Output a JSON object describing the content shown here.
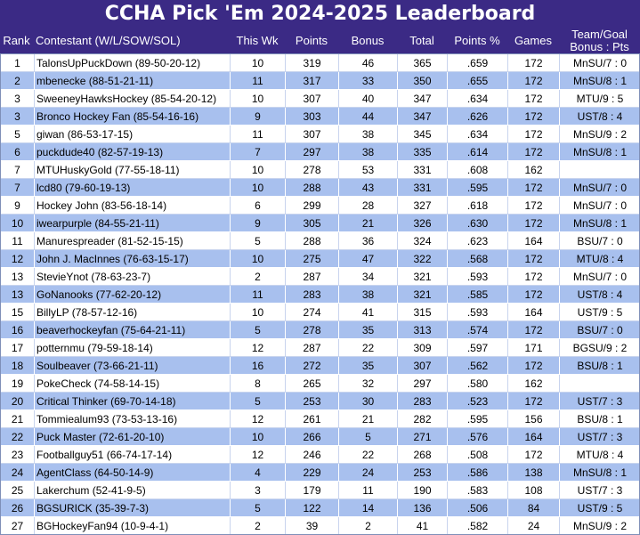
{
  "title": "CCHA Pick 'Em 2024-2025 Leaderboard",
  "columns": {
    "rank": "Rank",
    "contestant": "Contestant (W/L/SOW/SOL)",
    "this_wk": "This Wk",
    "points": "Points",
    "bonus": "Bonus",
    "total": "Total",
    "points_pct": "Points %",
    "games": "Games",
    "team_goal_line1": "Team/Goal",
    "team_goal_line2": "Bonus : Pts"
  },
  "rows": [
    {
      "rank": "1",
      "name": "TalonsUpPuckDown (89-50-20-12)",
      "wk": "10",
      "pts": "319",
      "bonus": "46",
      "total": "365",
      "pct": ".659",
      "games": "172",
      "tg": "MnSU/7 : 0"
    },
    {
      "rank": "2",
      "name": "mbenecke (88-51-21-11)",
      "wk": "11",
      "pts": "317",
      "bonus": "33",
      "total": "350",
      "pct": ".655",
      "games": "172",
      "tg": "MnSU/8 : 1"
    },
    {
      "rank": "3",
      "name": "SweeneyHawksHockey (85-54-20-12)",
      "wk": "10",
      "pts": "307",
      "bonus": "40",
      "total": "347",
      "pct": ".634",
      "games": "172",
      "tg": "MTU/9 : 5"
    },
    {
      "rank": "3",
      "name": "Bronco Hockey Fan (85-54-16-16)",
      "wk": "9",
      "pts": "303",
      "bonus": "44",
      "total": "347",
      "pct": ".626",
      "games": "172",
      "tg": "UST/8 : 4"
    },
    {
      "rank": "5",
      "name": "giwan (86-53-17-15)",
      "wk": "11",
      "pts": "307",
      "bonus": "38",
      "total": "345",
      "pct": ".634",
      "games": "172",
      "tg": "MnSU/9 : 2"
    },
    {
      "rank": "6",
      "name": "puckdude40 (82-57-19-13)",
      "wk": "7",
      "pts": "297",
      "bonus": "38",
      "total": "335",
      "pct": ".614",
      "games": "172",
      "tg": "MnSU/8 : 1"
    },
    {
      "rank": "7",
      "name": "MTUHuskyGold (77-55-18-11)",
      "wk": "10",
      "pts": "278",
      "bonus": "53",
      "total": "331",
      "pct": ".608",
      "games": "162",
      "tg": ""
    },
    {
      "rank": "7",
      "name": "lcd80 (79-60-19-13)",
      "wk": "10",
      "pts": "288",
      "bonus": "43",
      "total": "331",
      "pct": ".595",
      "games": "172",
      "tg": "MnSU/7 : 0"
    },
    {
      "rank": "9",
      "name": "Hockey John (83-56-18-14)",
      "wk": "6",
      "pts": "299",
      "bonus": "28",
      "total": "327",
      "pct": ".618",
      "games": "172",
      "tg": "MnSU/7 : 0"
    },
    {
      "rank": "10",
      "name": "iwearpurple (84-55-21-11)",
      "wk": "9",
      "pts": "305",
      "bonus": "21",
      "total": "326",
      "pct": ".630",
      "games": "172",
      "tg": "MnSU/8 : 1"
    },
    {
      "rank": "11",
      "name": "Manurespreader (81-52-15-15)",
      "wk": "5",
      "pts": "288",
      "bonus": "36",
      "total": "324",
      "pct": ".623",
      "games": "164",
      "tg": "BSU/7 : 0"
    },
    {
      "rank": "12",
      "name": "John J. MacInnes (76-63-15-17)",
      "wk": "10",
      "pts": "275",
      "bonus": "47",
      "total": "322",
      "pct": ".568",
      "games": "172",
      "tg": "MTU/8 : 4"
    },
    {
      "rank": "13",
      "name": "StevieYnot (78-63-23-7)",
      "wk": "2",
      "pts": "287",
      "bonus": "34",
      "total": "321",
      "pct": ".593",
      "games": "172",
      "tg": "MnSU/7 : 0"
    },
    {
      "rank": "13",
      "name": "GoNanooks (77-62-20-12)",
      "wk": "11",
      "pts": "283",
      "bonus": "38",
      "total": "321",
      "pct": ".585",
      "games": "172",
      "tg": "UST/8 : 4"
    },
    {
      "rank": "15",
      "name": "BillyLP (78-57-12-16)",
      "wk": "10",
      "pts": "274",
      "bonus": "41",
      "total": "315",
      "pct": ".593",
      "games": "164",
      "tg": "UST/9 : 5"
    },
    {
      "rank": "16",
      "name": "beaverhockeyfan (75-64-21-11)",
      "wk": "5",
      "pts": "278",
      "bonus": "35",
      "total": "313",
      "pct": ".574",
      "games": "172",
      "tg": "BSU/7 : 0"
    },
    {
      "rank": "17",
      "name": "potternmu (79-59-18-14)",
      "wk": "12",
      "pts": "287",
      "bonus": "22",
      "total": "309",
      "pct": ".597",
      "games": "171",
      "tg": "BGSU/9 : 2"
    },
    {
      "rank": "18",
      "name": "Soulbeaver (73-66-21-11)",
      "wk": "16",
      "pts": "272",
      "bonus": "35",
      "total": "307",
      "pct": ".562",
      "games": "172",
      "tg": "BSU/8 : 1"
    },
    {
      "rank": "19",
      "name": "PokeCheck (74-58-14-15)",
      "wk": "8",
      "pts": "265",
      "bonus": "32",
      "total": "297",
      "pct": ".580",
      "games": "162",
      "tg": ""
    },
    {
      "rank": "20",
      "name": "Critical Thinker (69-70-14-18)",
      "wk": "5",
      "pts": "253",
      "bonus": "30",
      "total": "283",
      "pct": ".523",
      "games": "172",
      "tg": "UST/7 : 3"
    },
    {
      "rank": "21",
      "name": "Tommiealum93 (73-53-13-16)",
      "wk": "12",
      "pts": "261",
      "bonus": "21",
      "total": "282",
      "pct": ".595",
      "games": "156",
      "tg": "BSU/8 : 1"
    },
    {
      "rank": "22",
      "name": "Puck Master (72-61-20-10)",
      "wk": "10",
      "pts": "266",
      "bonus": "5",
      "total": "271",
      "pct": ".576",
      "games": "164",
      "tg": "UST/7 : 3"
    },
    {
      "rank": "23",
      "name": "Footballguy51 (66-74-17-14)",
      "wk": "12",
      "pts": "246",
      "bonus": "22",
      "total": "268",
      "pct": ".508",
      "games": "172",
      "tg": "MTU/8 : 4"
    },
    {
      "rank": "24",
      "name": "AgentClass (64-50-14-9)",
      "wk": "4",
      "pts": "229",
      "bonus": "24",
      "total": "253",
      "pct": ".586",
      "games": "138",
      "tg": "MnSU/8 : 1"
    },
    {
      "rank": "25",
      "name": "Lakerchum (52-41-9-5)",
      "wk": "3",
      "pts": "179",
      "bonus": "11",
      "total": "190",
      "pct": ".583",
      "games": "108",
      "tg": "UST/7 : 3"
    },
    {
      "rank": "26",
      "name": "BGSURICK (35-39-7-3)",
      "wk": "5",
      "pts": "122",
      "bonus": "14",
      "total": "136",
      "pct": ".506",
      "games": "84",
      "tg": "UST/9 : 5"
    },
    {
      "rank": "27",
      "name": "BGHockeyFan94 (10-9-4-1)",
      "wk": "2",
      "pts": "39",
      "bonus": "2",
      "total": "41",
      "pct": ".582",
      "games": "24",
      "tg": "MnSU/9 : 2"
    }
  ],
  "colors": {
    "header_bg": "#3b2a85",
    "header_text": "#ffffff",
    "row_alt_bg": "#a8c0ee",
    "row_bg": "#ffffff"
  }
}
